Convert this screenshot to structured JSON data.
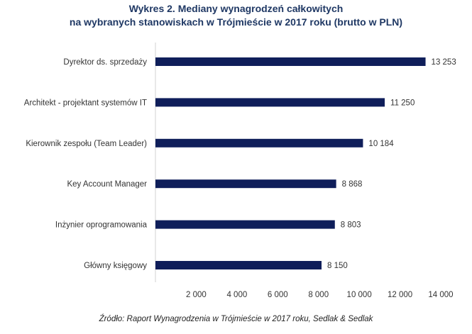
{
  "chart_data": {
    "type": "bar",
    "orientation": "horizontal",
    "title_line1": "Wykres 2. Mediany wynagrodzeń całkowitych",
    "title_line2": "na wybranych stanowiskach w Trójmieście w 2017 roku (brutto w PLN)",
    "categories": [
      "Dyrektor ds. sprzedaży",
      "Architekt - projektant systemów IT",
      "Kierownik zespołu (Team Leader)",
      "Key Account Manager",
      "Inżynier oprogramowania",
      "Główny księgowy"
    ],
    "values": [
      13253,
      11250,
      10184,
      8868,
      8803,
      8150
    ],
    "value_labels": [
      "13 253",
      "11 250",
      "10 184",
      "8 868",
      "8 803",
      "8 150"
    ],
    "xlim": [
      0,
      14000
    ],
    "x_ticks": [
      2000,
      4000,
      6000,
      8000,
      10000,
      12000,
      14000
    ],
    "x_tick_labels": [
      "2 000",
      "4 000",
      "6 000",
      "8 000",
      "10 000",
      "12 000",
      "14 000"
    ],
    "bar_color": "#0f1e5a",
    "grid": false,
    "source": "Źródło: Raport Wynagrodzenia w Trójmieście w 2017 roku, Sedlak & Sedlak"
  }
}
